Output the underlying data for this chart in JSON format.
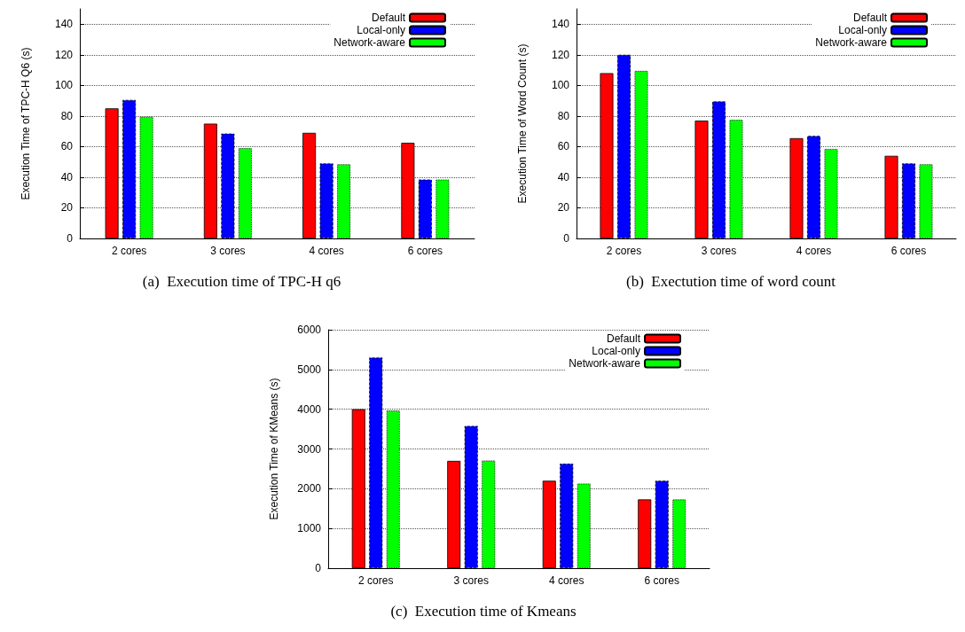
{
  "chart_data": [
    {
      "type": "bar",
      "title": "(a)  Execution time of TPC-H q6",
      "ylabel": "Execution Time of TPC-H Q6 (s)",
      "categories": [
        "2 cores",
        "3 cores",
        "4 cores",
        "6 cores"
      ],
      "series": [
        {
          "name": "Default",
          "color": "#ff0000",
          "line_style": "solid",
          "values": [
            85,
            75,
            69,
            62.5
          ]
        },
        {
          "name": "Local-only",
          "color": "#0000ff",
          "line_style": "dashed",
          "values": [
            90.5,
            68.5,
            49,
            38.5
          ]
        },
        {
          "name": "Network-aware",
          "color": "#00ff00",
          "line_style": "dotted",
          "values": [
            79.5,
            59,
            48.5,
            38.5
          ]
        }
      ],
      "ylim": [
        0,
        150
      ],
      "yticks": [
        0,
        20,
        40,
        60,
        80,
        100,
        120,
        140
      ],
      "grid": "y",
      "legend": "top right"
    },
    {
      "type": "bar",
      "title": "(b)  Exectution time of word count",
      "ylabel": "Execution Time of Word Count (s)",
      "categories": [
        "2 cores",
        "3 cores",
        "4 cores",
        "6 cores"
      ],
      "series": [
        {
          "name": "Default",
          "color": "#ff0000",
          "line_style": "solid",
          "values": [
            108,
            77,
            65.5,
            54
          ]
        },
        {
          "name": "Local-only",
          "color": "#0000ff",
          "line_style": "dashed",
          "values": [
            120,
            89.5,
            67,
            49
          ]
        },
        {
          "name": "Network-aware",
          "color": "#00ff00",
          "line_style": "dotted",
          "values": [
            109.5,
            77.5,
            58.5,
            48.5
          ]
        }
      ],
      "ylim": [
        0,
        150
      ],
      "yticks": [
        0,
        20,
        40,
        60,
        80,
        100,
        120,
        140
      ],
      "grid": "y",
      "legend": "top right"
    },
    {
      "type": "bar",
      "title": "(c)  Execution time of Kmeans",
      "ylabel": "Execution Time of KMeans (s)",
      "categories": [
        "2 cores",
        "3 cores",
        "4 cores",
        "6 cores"
      ],
      "series": [
        {
          "name": "Default",
          "color": "#ff0000",
          "line_style": "solid",
          "values": [
            4000,
            2700,
            2200,
            1730
          ]
        },
        {
          "name": "Local-only",
          "color": "#0000ff",
          "line_style": "dashed",
          "values": [
            5300,
            3580,
            2630,
            2200
          ]
        },
        {
          "name": "Network-aware",
          "color": "#00ff00",
          "line_style": "dotted",
          "values": [
            3970,
            2710,
            2130,
            1730
          ]
        }
      ],
      "ylim": [
        0,
        6000
      ],
      "yticks": [
        0,
        1000,
        2000,
        3000,
        4000,
        5000,
        6000
      ],
      "grid": "y",
      "legend": "top right"
    }
  ]
}
